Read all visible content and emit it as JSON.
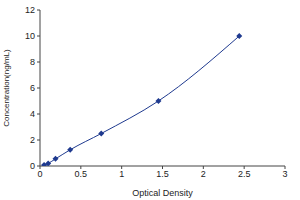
{
  "chart_data": {
    "type": "line",
    "xlabel": "Optical Density",
    "ylabel": "Concentration(ng/mL)",
    "x": [
      0.05,
      0.1,
      0.19,
      0.37,
      0.75,
      1.45,
      2.44
    ],
    "values": [
      0.08,
      0.2,
      0.55,
      1.25,
      2.5,
      5,
      10
    ],
    "color": "#1f3a8f",
    "marker": "diamond",
    "xlim": [
      0,
      3
    ],
    "xticks": [
      0,
      0.5,
      1,
      1.5,
      2,
      2.5,
      3
    ],
    "ylim": [
      0,
      12
    ],
    "yticks": [
      0,
      2,
      4,
      6,
      8,
      10,
      12
    ],
    "grid": false
  }
}
